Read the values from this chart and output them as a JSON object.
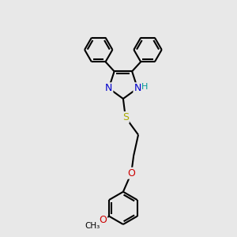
{
  "bg_color": "#e8e8e8",
  "bond_color": "#000000",
  "bond_width": 1.5,
  "N_color": "#0000cc",
  "H_color": "#009999",
  "S_color": "#aaaa00",
  "O_color": "#cc0000",
  "font_size": 8.5,
  "fig_width": 3.0,
  "fig_height": 3.0,
  "xlim": [
    0,
    10
  ],
  "ylim": [
    0,
    10
  ]
}
